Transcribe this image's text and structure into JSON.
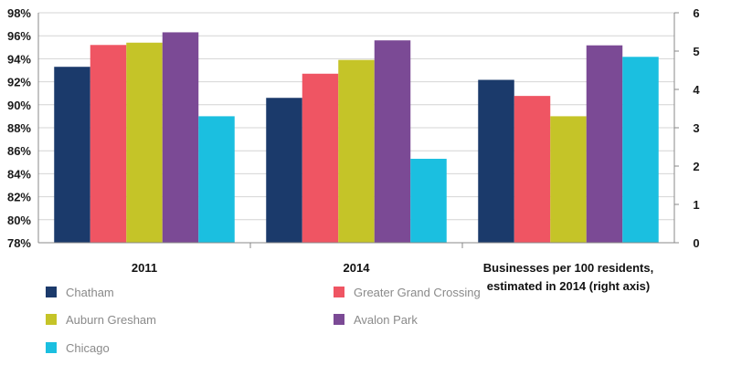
{
  "chart_data": {
    "type": "bar",
    "categories": [
      [
        "2011"
      ],
      [
        "2014"
      ],
      [
        "Businesses per 100 residents,",
        "estimated in 2014 (right axis)"
      ]
    ],
    "series": [
      {
        "name": "Chatham",
        "color": "#1b3a6b",
        "values": [
          93.3,
          90.6,
          4.25
        ]
      },
      {
        "name": "Greater Grand Crossing",
        "color": "#ef5563",
        "values": [
          95.2,
          92.7,
          3.83
        ]
      },
      {
        "name": "Auburn Gresham",
        "color": "#c5c428",
        "values": [
          95.4,
          93.9,
          3.3
        ]
      },
      {
        "name": "Avalon Park",
        "color": "#7b4a95",
        "values": [
          96.3,
          95.6,
          5.15
        ]
      },
      {
        "name": "Chicago",
        "color": "#1bbfe0",
        "values": [
          89.0,
          85.3,
          4.85
        ]
      }
    ],
    "left_axis": {
      "min": 78,
      "max": 98,
      "step": 2,
      "tick_labels": [
        "78%",
        "80%",
        "82%",
        "84%",
        "86%",
        "88%",
        "90%",
        "92%",
        "94%",
        "96%",
        "98%"
      ]
    },
    "right_axis": {
      "min": 0,
      "max": 6,
      "step": 1,
      "tick_labels": [
        "0",
        "1",
        "2",
        "3",
        "4",
        "5",
        "6"
      ]
    },
    "category_axis": [
      "left",
      "left",
      "right"
    ],
    "grid": true,
    "legend_placement": "bottom"
  }
}
